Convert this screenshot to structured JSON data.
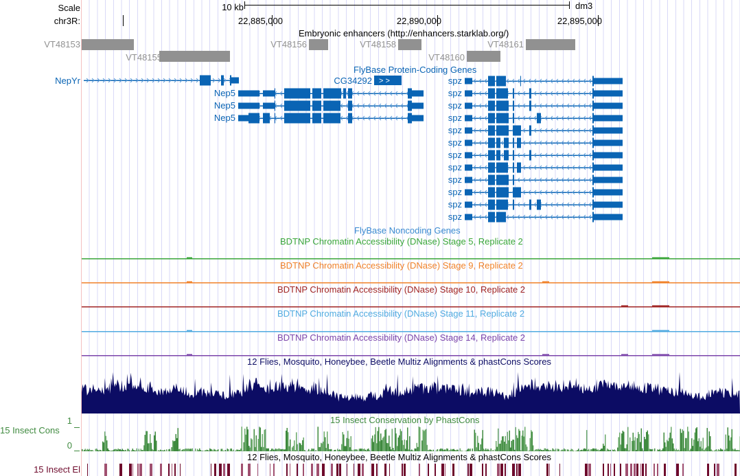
{
  "header": {
    "scale_label": "Scale",
    "scale_bar": "10 kb",
    "assembly": "dm3",
    "chrom_label": "chr3R:",
    "ticks": [
      "22,885,000",
      "22,890,000",
      "22,895,000"
    ]
  },
  "tracks": {
    "enhancers": {
      "title": "Embryonic enhancers (http://enhancers.starklab.org/)",
      "color": "#919191",
      "items": [
        "VT48153",
        "VT48155",
        "VT48156",
        "VT48158",
        "VT48160",
        "VT48161"
      ]
    },
    "genes": {
      "title": "FlyBase Protein-Coding Genes",
      "color": "#0a64b4",
      "names": {
        "nepyr": "NepYr",
        "cg": "CG34292",
        "nep5": "Nep5",
        "spz": "spz"
      }
    },
    "noncoding": {
      "title": "FlyBase Noncoding Genes"
    },
    "dnase": [
      {
        "title": "BDTNP Chromatin Accessibility (DNase) Stage 5, Replicate 2",
        "color": "#3aa63a"
      },
      {
        "title": "BDTNP Chromatin Accessibility (DNase) Stage 9, Replicate 2",
        "color": "#f0822a"
      },
      {
        "title": "BDTNP Chromatin Accessibility (DNase) Stage 10, Replicate 2",
        "color": "#a02424"
      },
      {
        "title": "BDTNP Chromatin Accessibility (DNase) Stage 11, Replicate 2",
        "color": "#50aae0"
      },
      {
        "title": "BDTNP Chromatin Accessibility (DNase) Stage 14, Replicate 2",
        "color": "#7b44aa"
      }
    ],
    "multiz": {
      "title": "12 Flies, Mosquito, Honeybee, Beetle Multiz Alignments & phastCons Scores",
      "color": "#0c0c64"
    },
    "phastcons": {
      "title": "15 Insect Conservation by PhastCons",
      "label": "15 Insect Cons",
      "ymax": "1",
      "ymin": "0",
      "color": "#3f8a3f"
    },
    "elements": {
      "title": "12 Flies, Mosquito, Honeybee, Beetle Multiz Alignments & phastCons Scores",
      "label": "15 Insect El",
      "color": "#6e0a2c"
    }
  }
}
